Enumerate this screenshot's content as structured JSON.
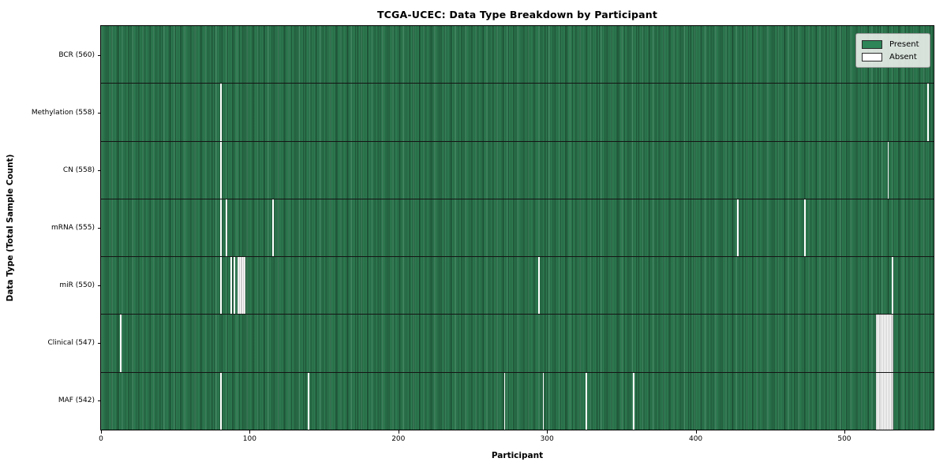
{
  "chart_data": {
    "type": "heatmap",
    "title": "TCGA-UCEC: Data Type Breakdown by Participant",
    "xlabel": "Participant",
    "ylabel": "Data Type (Total Sample Count)",
    "x_range": [
      0,
      560
    ],
    "n_participants": 560,
    "x_ticks": [
      0,
      100,
      200,
      300,
      400,
      500
    ],
    "grid": false,
    "legend_position": "upper right",
    "legend": [
      {
        "label": "Present",
        "color": "#2e8557"
      },
      {
        "label": "Absent",
        "color": "#ffffff"
      }
    ],
    "colors": {
      "present": "#2e8557",
      "present_edge": "#1d5136",
      "absent": "#ffffff"
    },
    "rows": [
      {
        "label": "BCR (560)",
        "data_type": "BCR",
        "count": 560,
        "absent_ranges": []
      },
      {
        "label": "Methylation (558)",
        "data_type": "Methylation",
        "count": 558,
        "absent_ranges": [
          [
            80,
            80
          ],
          [
            556,
            556
          ]
        ]
      },
      {
        "label": "CN (558)",
        "data_type": "CN",
        "count": 558,
        "absent_ranges": [
          [
            80,
            80
          ],
          [
            529,
            529
          ]
        ]
      },
      {
        "label": "mRNA (555)",
        "data_type": "mRNA",
        "count": 555,
        "absent_ranges": [
          [
            80,
            80
          ],
          [
            84,
            84
          ],
          [
            115,
            115
          ],
          [
            428,
            428
          ],
          [
            473,
            473
          ]
        ]
      },
      {
        "label": "miR (550)",
        "data_type": "miR",
        "count": 550,
        "absent_ranges": [
          [
            80,
            80
          ],
          [
            87,
            87
          ],
          [
            89,
            89
          ],
          [
            92,
            96
          ],
          [
            294,
            294
          ],
          [
            532,
            532
          ]
        ]
      },
      {
        "label": "Clinical (547)",
        "data_type": "Clinical",
        "count": 547,
        "absent_ranges": [
          [
            13,
            13
          ],
          [
            521,
            532
          ]
        ]
      },
      {
        "label": "MAF (542)",
        "data_type": "MAF",
        "count": 542,
        "absent_ranges": [
          [
            80,
            80
          ],
          [
            139,
            139
          ],
          [
            271,
            271
          ],
          [
            297,
            297
          ],
          [
            326,
            326
          ],
          [
            358,
            358
          ],
          [
            521,
            532
          ]
        ]
      }
    ]
  }
}
